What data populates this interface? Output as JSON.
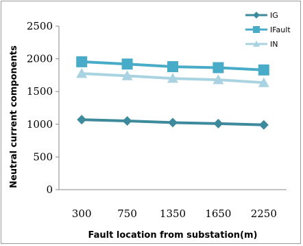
{
  "chart_data": {
    "type": "line",
    "categories": [
      "300",
      "750",
      "1350",
      "1650",
      "2250"
    ],
    "series": [
      {
        "name": "IG",
        "values": [
          1070,
          1050,
          1025,
          1010,
          990
        ],
        "color": "#3d8a9c",
        "marker": "diamond"
      },
      {
        "name": "IFault",
        "values": [
          1955,
          1920,
          1880,
          1865,
          1830
        ],
        "color": "#48abc8",
        "marker": "square"
      },
      {
        "name": "IN",
        "values": [
          1775,
          1740,
          1700,
          1680,
          1635
        ],
        "color": "#a9d3e0",
        "marker": "triangle"
      }
    ],
    "title": "",
    "xlabel": "Fault location from substation(m)",
    "ylabel": "Neutral current components",
    "ylim": [
      0,
      2500
    ],
    "yticks": [
      0,
      500,
      1000,
      1500,
      2000,
      2500
    ],
    "grid": false,
    "legend": "top-right"
  }
}
